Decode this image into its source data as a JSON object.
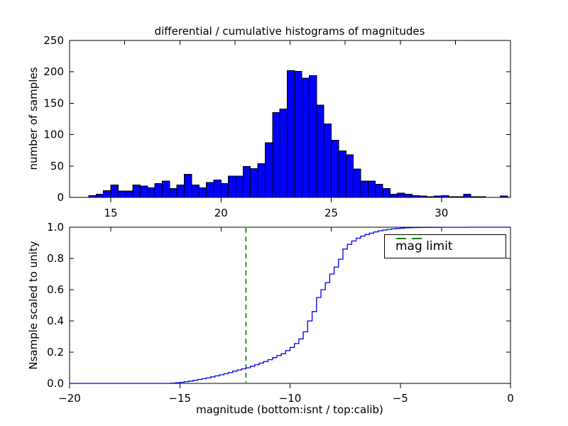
{
  "figure": {
    "title": "differential / cumulative histograms of magnitudes",
    "background": "#ffffff"
  },
  "colors": {
    "bar_fill": "#0000ff",
    "bar_edge": "#000000",
    "curve": "#0000ee",
    "mag_limit_line": "#008000",
    "axis": "#000000",
    "text": "#000000"
  },
  "legend": {
    "label": "mag limit"
  },
  "chart_data": [
    {
      "type": "bar",
      "subplot": "top",
      "title": "differential / cumulative histograms of magnitudes",
      "ylabel": "number of samples",
      "xlim": [
        13.13,
        33.13
      ],
      "ylim": [
        0,
        250
      ],
      "xticks": [
        15,
        20,
        25,
        30
      ],
      "xtick_labels": [
        "15",
        "20",
        "25",
        "30"
      ],
      "yticks": [
        0,
        50,
        100,
        150,
        200,
        250
      ],
      "ytick_labels": [
        "0",
        "50",
        "100",
        "150",
        "200",
        "250"
      ],
      "top_axis_ticks_isnt": [
        -17.5,
        -15,
        -12.5,
        -10,
        -7.5,
        -5,
        -2.5
      ],
      "grid": false,
      "bin_start": 14.0,
      "bin_width": 0.33333,
      "values": [
        3,
        5,
        11,
        20,
        10,
        10,
        20,
        18,
        15,
        22,
        26,
        14,
        20,
        37,
        20,
        15,
        24,
        28,
        22,
        34,
        34,
        49,
        46,
        54,
        87,
        135,
        141,
        202,
        201,
        190,
        194,
        147,
        117,
        91,
        74,
        68,
        45,
        26,
        26,
        21,
        14,
        5,
        7,
        5,
        3,
        2,
        1,
        2,
        3,
        1,
        1,
        5,
        1,
        1,
        0,
        0,
        2
      ]
    },
    {
      "type": "line",
      "subplot": "bottom",
      "style": "step-cdf",
      "ylabel": "Nsample scaled to unity",
      "xlabel": "magnitude (bottom:isnt / top:calib)",
      "xlim": [
        -20,
        0
      ],
      "ylim": [
        0.0,
        1.0
      ],
      "xticks": [
        -20,
        -15,
        -10,
        -5,
        0
      ],
      "xtick_labels": [
        "−20",
        "−15",
        "−10",
        "−5",
        "0"
      ],
      "yticks": [
        0.0,
        0.2,
        0.4,
        0.6,
        0.8,
        1.0
      ],
      "ytick_labels": [
        "0.0",
        "0.2",
        "0.4",
        "0.6",
        "0.8",
        "1.0"
      ],
      "top_axis_ticks_calib": [
        15,
        20,
        25,
        30
      ],
      "grid": false,
      "mag_limit_x": -12,
      "legend_label": "mag limit",
      "legend_position": "upper right",
      "points": [
        [
          -15.4,
          0.002
        ],
        [
          -15.2,
          0.004
        ],
        [
          -15.0,
          0.007
        ],
        [
          -14.8,
          0.011
        ],
        [
          -14.6,
          0.015
        ],
        [
          -14.4,
          0.02
        ],
        [
          -14.2,
          0.025
        ],
        [
          -14.0,
          0.03
        ],
        [
          -13.8,
          0.036
        ],
        [
          -13.6,
          0.042
        ],
        [
          -13.4,
          0.048
        ],
        [
          -13.2,
          0.055
        ],
        [
          -13.0,
          0.062
        ],
        [
          -12.8,
          0.07
        ],
        [
          -12.6,
          0.078
        ],
        [
          -12.4,
          0.086
        ],
        [
          -12.2,
          0.093
        ],
        [
          -12.0,
          0.1
        ],
        [
          -11.8,
          0.11
        ],
        [
          -11.6,
          0.12
        ],
        [
          -11.4,
          0.13
        ],
        [
          -11.2,
          0.14
        ],
        [
          -11.0,
          0.152
        ],
        [
          -10.8,
          0.165
        ],
        [
          -10.6,
          0.178
        ],
        [
          -10.4,
          0.19
        ],
        [
          -10.2,
          0.21
        ],
        [
          -10.0,
          0.23
        ],
        [
          -9.8,
          0.255
        ],
        [
          -9.6,
          0.285
        ],
        [
          -9.4,
          0.33
        ],
        [
          -9.2,
          0.4
        ],
        [
          -9.0,
          0.46
        ],
        [
          -8.8,
          0.55
        ],
        [
          -8.6,
          0.6
        ],
        [
          -8.4,
          0.645
        ],
        [
          -8.2,
          0.7
        ],
        [
          -8.0,
          0.745
        ],
        [
          -7.8,
          0.795
        ],
        [
          -7.6,
          0.86
        ],
        [
          -7.4,
          0.89
        ],
        [
          -7.2,
          0.912
        ],
        [
          -7.0,
          0.93
        ],
        [
          -6.8,
          0.943
        ],
        [
          -6.6,
          0.953
        ],
        [
          -6.4,
          0.962
        ],
        [
          -6.2,
          0.97
        ],
        [
          -6.0,
          0.977
        ],
        [
          -5.8,
          0.982
        ],
        [
          -5.6,
          0.986
        ],
        [
          -5.4,
          0.989
        ],
        [
          -5.2,
          0.992
        ],
        [
          -5.0,
          0.994
        ],
        [
          -4.8,
          0.996
        ],
        [
          -4.6,
          0.997
        ],
        [
          -4.4,
          0.9975
        ],
        [
          -4.2,
          0.998
        ],
        [
          -4.0,
          0.9985
        ],
        [
          -3.6,
          0.999
        ],
        [
          -3.2,
          0.9995
        ],
        [
          -1.9,
          1.0
        ]
      ]
    }
  ]
}
